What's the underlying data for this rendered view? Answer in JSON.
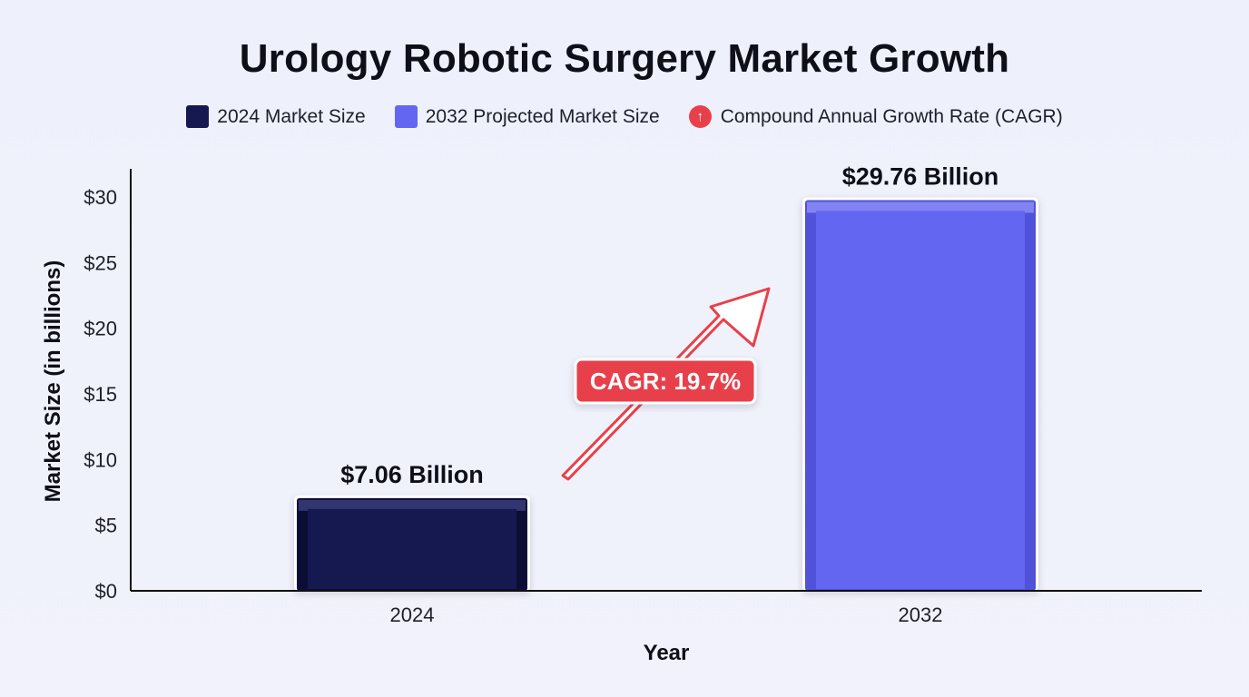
{
  "chart_data": {
    "type": "bar",
    "title": "Urology Robotic Surgery Market Growth",
    "categories": [
      "2024",
      "2032"
    ],
    "values": [
      7.06,
      29.76
    ],
    "data_labels": [
      "$7.06 Billion",
      "$29.76 Billion"
    ],
    "xlabel": "Year",
    "ylabel": "Market Size (in billions)",
    "ylim": [
      0,
      32
    ],
    "yticks": [
      0,
      5,
      10,
      15,
      20,
      25,
      30
    ],
    "ytick_labels": [
      "$0",
      "$5",
      "$10",
      "$15",
      "$20",
      "$25",
      "$30"
    ],
    "grid": false,
    "legend_position": "top-center",
    "legend": [
      {
        "label": "2024 Market Size",
        "color": "#161850"
      },
      {
        "label": "2032 Projected Market Size",
        "color": "#6366f1"
      },
      {
        "label": "Compound Annual Growth Rate (CAGR)",
        "color": "#e8404b",
        "icon": "arrow-up-icon"
      }
    ],
    "bar_colors": [
      "#161850",
      "#6366f1"
    ],
    "annotation": {
      "label": "CAGR: 19.7%",
      "color": "#e8404b",
      "icon": "arrow-icon"
    }
  }
}
